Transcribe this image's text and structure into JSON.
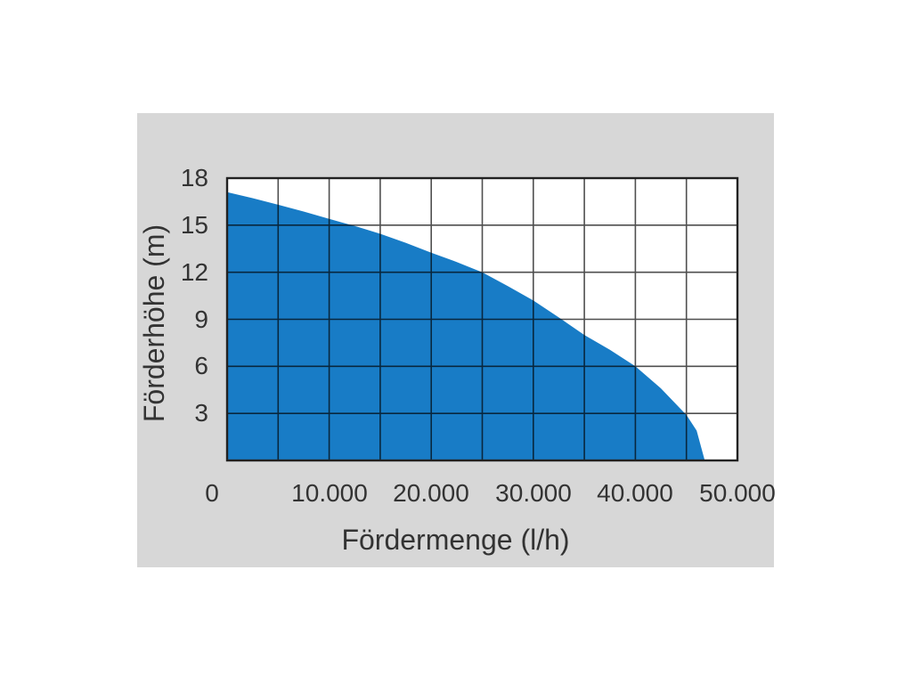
{
  "page": {
    "background": "#ffffff",
    "panel_background": "#d7d7d7"
  },
  "chart_data": {
    "type": "area",
    "xlabel": "Fördermenge (l/h)",
    "ylabel": "Förderhöhe (m)",
    "xlim": [
      0,
      50000
    ],
    "ylim": [
      0,
      18
    ],
    "x_ticks": [
      "0",
      "10.000",
      "20.000",
      "30.000",
      "40.000",
      "50.000"
    ],
    "x_tick_values": [
      0,
      10000,
      20000,
      30000,
      40000,
      50000
    ],
    "y_ticks": [
      "18",
      "15",
      "12",
      "9",
      "6",
      "3"
    ],
    "y_tick_values": [
      18,
      15,
      12,
      9,
      6,
      3
    ],
    "x_grid_step": 5000,
    "y_grid_step": 3,
    "grid": true,
    "legend": false,
    "series": [
      {
        "name": "pump-performance-curve",
        "style": "filled-area",
        "points": [
          [
            0,
            17.1
          ],
          [
            2500,
            16.72
          ],
          [
            5000,
            16.3
          ],
          [
            7500,
            15.87
          ],
          [
            10000,
            15.4
          ],
          [
            12500,
            14.95
          ],
          [
            15000,
            14.45
          ],
          [
            17500,
            13.88
          ],
          [
            20000,
            13.25
          ],
          [
            22500,
            12.65
          ],
          [
            25000,
            12.0
          ],
          [
            27500,
            11.12
          ],
          [
            30000,
            10.2
          ],
          [
            32500,
            9.12
          ],
          [
            35000,
            8.0
          ],
          [
            37500,
            7.05
          ],
          [
            40000,
            6.0
          ],
          [
            42500,
            4.6
          ],
          [
            45000,
            2.9
          ],
          [
            46000,
            1.9
          ],
          [
            46800,
            0
          ]
        ]
      }
    ],
    "colors": {
      "fill": "#187cc6",
      "grid": "#4f4f4f",
      "border": "#222222",
      "text": "#333333",
      "plot_background": "#ffffff"
    }
  }
}
